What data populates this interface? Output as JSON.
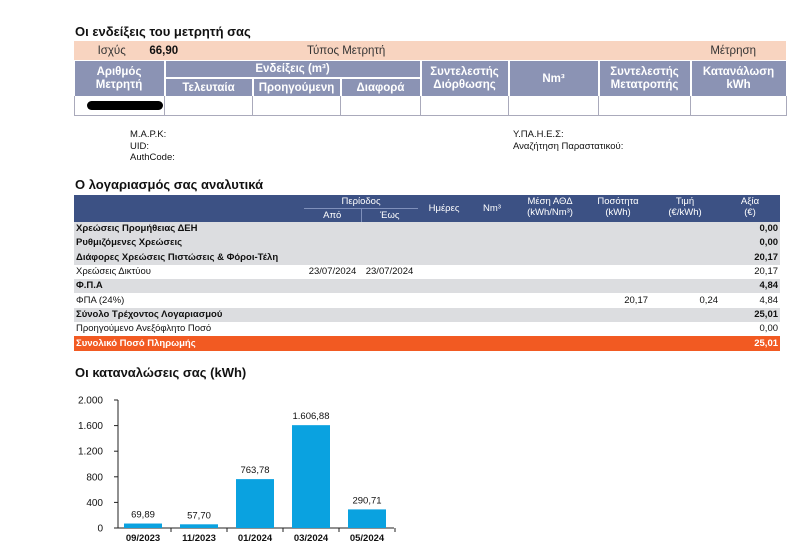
{
  "meter_section": {
    "title": "Οι ενδείξεις του μετρητή σας",
    "power_label": "Ισχύς",
    "power_value": "66,90",
    "meter_type_label": "Τύπος Μετρητή",
    "measurement_label": "Μέτρηση",
    "headers": {
      "meter_number": [
        "Αριθμός",
        "Μετρητή"
      ],
      "readings": "Ενδείξεις (m³)",
      "last": "Τελευταία",
      "previous": "Προηγούμενη",
      "difference": "Διαφορά",
      "correction_factor": [
        "Συντελεστής",
        "Διόρθωσης"
      ],
      "nm3": "Nm³",
      "conversion_factor": [
        "Συντελεστής",
        "Μετατροπής"
      ],
      "consumption": [
        "Κατανάλωση",
        "kWh"
      ]
    }
  },
  "info": {
    "left": [
      "Μ.Α.Ρ.Κ:",
      "UID:",
      "AuthCode:"
    ],
    "right": [
      "Υ.ΠΑ.Η.Ε.Σ:",
      "Αναζήτηση Παραστατικού:"
    ]
  },
  "bill_section": {
    "title": "Ο λογαριασμός σας αναλυτικά",
    "headers": {
      "period": "Περίοδος",
      "from": "Από",
      "to": "Έως",
      "days": "Ημέρες",
      "nm3": "Nm³",
      "avg": [
        "Μέση ΑΘΔ",
        "(kWh/Nm³)"
      ],
      "qty": [
        "Ποσότητα",
        "(kWh)"
      ],
      "price": [
        "Τιμή",
        "(€/kWh)"
      ],
      "value": [
        "Αξία",
        "(€)"
      ]
    },
    "rows": [
      {
        "label": "Χρεώσεις Προμήθειας ΔΕΗ",
        "from": "",
        "to": "",
        "qty": "",
        "price": "",
        "value": "0,00",
        "style": "grey",
        "bold": true
      },
      {
        "label": "Ρυθμιζόμενες Χρεώσεις",
        "from": "",
        "to": "",
        "qty": "",
        "price": "",
        "value": "0,00",
        "style": "grey",
        "bold": true
      },
      {
        "label": "Διάφορες Χρεώσεις Πιστώσεις & Φόροι-Τέλη",
        "from": "",
        "to": "",
        "qty": "",
        "price": "",
        "value": "20,17",
        "style": "grey",
        "bold": true
      },
      {
        "label": "Χρεώσεις Δικτύου",
        "from": "23/07/2024",
        "to": "23/07/2024",
        "qty": "",
        "price": "",
        "value": "20,17",
        "style": "white",
        "bold": false
      },
      {
        "label": "Φ.Π.Α",
        "from": "",
        "to": "",
        "qty": "",
        "price": "",
        "value": "4,84",
        "style": "grey",
        "bold": true
      },
      {
        "label": "ΦΠΑ (24%)",
        "from": "",
        "to": "",
        "qty": "20,17",
        "price": "0,24",
        "value": "4,84",
        "style": "white",
        "bold": false
      },
      {
        "label": "Σύνολο Τρέχοντος Λογαριασμού",
        "from": "",
        "to": "",
        "qty": "",
        "price": "",
        "value": "25,01",
        "style": "grey",
        "bold": true
      },
      {
        "label": "Προηγούμενο Ανεξόφλητο Ποσό",
        "from": "",
        "to": "",
        "qty": "",
        "price": "",
        "value": "0,00",
        "style": "white",
        "bold": false
      },
      {
        "label": "Συνολικό Ποσό Πληρωμής",
        "from": "",
        "to": "",
        "qty": "",
        "price": "",
        "value": "25,01",
        "style": "orange",
        "bold": true
      }
    ]
  },
  "consumption_section": {
    "title": "Οι καταναλώσεις σας (kWh)"
  },
  "chart_data": {
    "type": "bar",
    "categories": [
      "09/2023",
      "11/2023",
      "01/2024",
      "03/2024",
      "05/2024"
    ],
    "values": [
      69.89,
      57.7,
      763.78,
      1606.88,
      290.71
    ],
    "value_labels": [
      "69,89",
      "57,70",
      "763,78",
      "1.606,88",
      "290,71"
    ],
    "y_ticks": [
      0,
      400,
      800,
      1200,
      1600,
      2000
    ],
    "y_tick_labels": [
      "0",
      "400",
      "800",
      "1.200",
      "1.600",
      "2.000"
    ],
    "ylim": [
      0,
      2000
    ],
    "bar_color": "#0aa2e0",
    "grid": false,
    "title": "",
    "xlabel": "",
    "ylabel": ""
  },
  "colors": {
    "peach": "#f8d4c0",
    "meter_header": "#8b93b4",
    "bill_header": "#3c5184",
    "grey_row": "#dcdde0",
    "total_row": "#f25a22"
  }
}
